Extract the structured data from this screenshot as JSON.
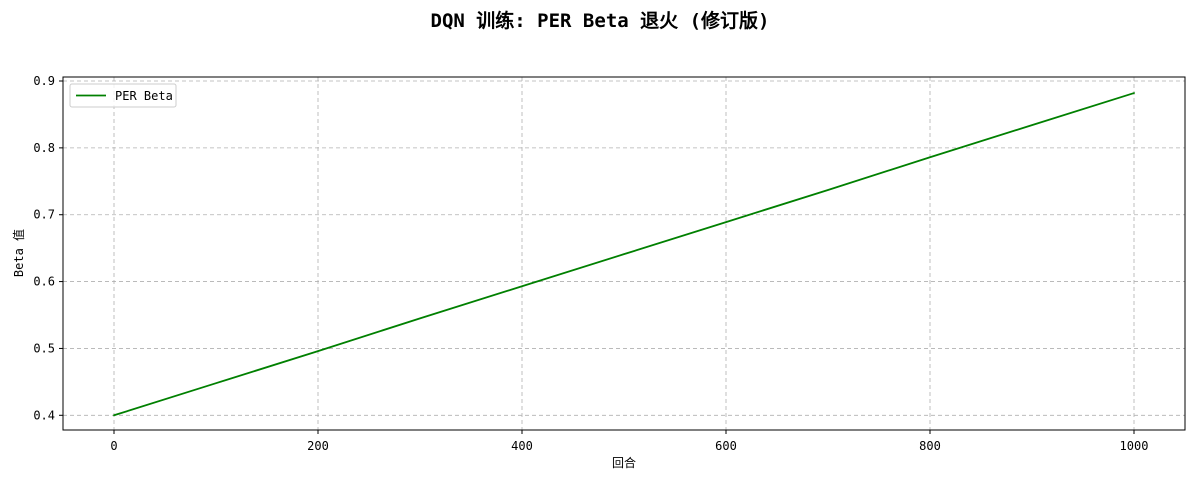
{
  "chart_data": {
    "type": "line",
    "title": "DQN 训练: PER Beta 退火 (修订版)",
    "xlabel": "回合",
    "ylabel": "Beta 值",
    "xlim": [
      -50,
      1050
    ],
    "ylim": [
      0.378,
      0.906
    ],
    "xticks": [
      0,
      200,
      400,
      600,
      800,
      1000
    ],
    "xtick_labels": [
      "0",
      "200",
      "400",
      "600",
      "800",
      "1000"
    ],
    "yticks": [
      0.4,
      0.5,
      0.6,
      0.7,
      0.8,
      0.9
    ],
    "ytick_labels": [
      "0.4",
      "0.5",
      "0.6",
      "0.7",
      "0.8",
      "0.9"
    ],
    "grid": true,
    "legend_position": "upper-left",
    "series": [
      {
        "name": "PER Beta",
        "color": "#008000",
        "x": [
          0,
          100,
          200,
          300,
          400,
          500,
          600,
          700,
          800,
          900,
          1000
        ],
        "y": [
          0.4,
          0.448,
          0.496,
          0.545,
          0.593,
          0.641,
          0.689,
          0.737,
          0.786,
          0.834,
          0.882
        ]
      }
    ]
  }
}
